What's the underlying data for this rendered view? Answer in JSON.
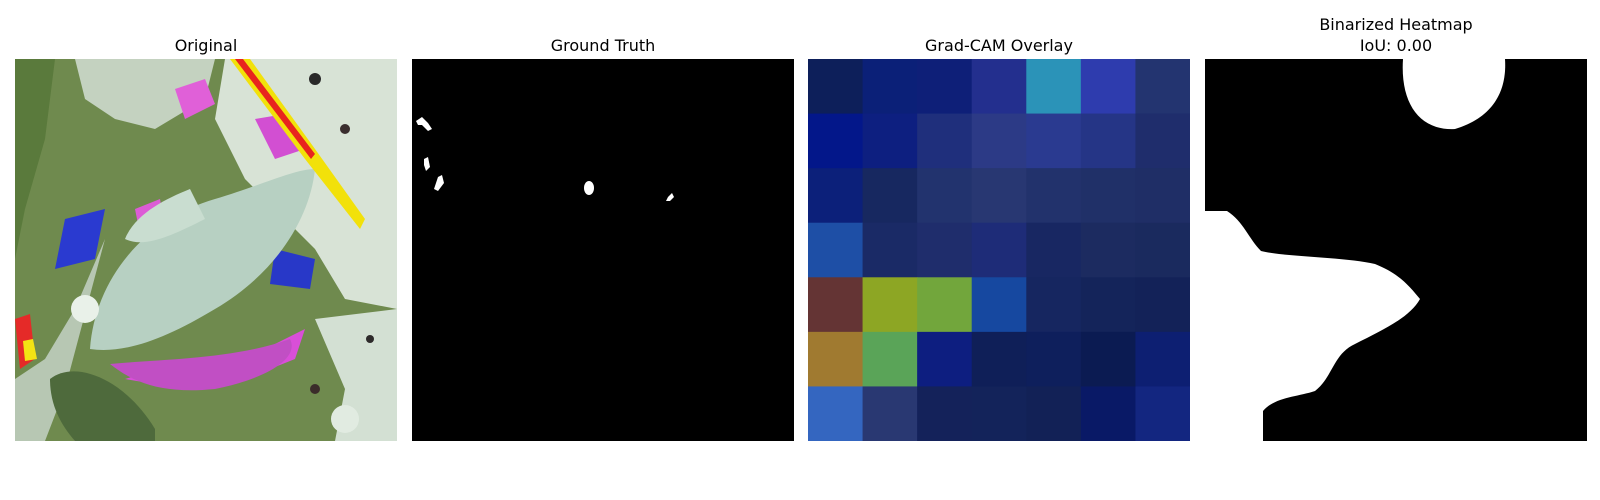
{
  "panels": {
    "original": {
      "title": "Original"
    },
    "ground_truth": {
      "title": "Ground Truth"
    },
    "gradcam": {
      "title": "Grad-CAM Overlay",
      "grid": [
        [
          "#0d1f5a",
          "#0b2078",
          "#0e1f78",
          "#232f8e",
          "#2b93b8",
          "#2e3cae",
          "#233470"
        ],
        [
          "#03178a",
          "#0d1f80",
          "#1f2f7c",
          "#2c3a86",
          "#2a3a90",
          "#253586",
          "#1f2d6c"
        ],
        [
          "#0c207a",
          "#172860",
          "#22336e",
          "#283772",
          "#22326c",
          "#203068",
          "#1f2e66"
        ],
        [
          "#1e4fa6",
          "#1a2a66",
          "#1f2d6c",
          "#1e2c78",
          "#182762",
          "#1c2b60",
          "#1a2a5e"
        ],
        [
          "#643434",
          "#8da624",
          "#72a63c",
          "#1648a0",
          "#162660",
          "#14245a",
          "#132258"
        ],
        [
          "#a07a30",
          "#5aa458",
          "#0d1e80",
          "#0f1f58",
          "#0e1f5c",
          "#0b1b52",
          "#0d1f72"
        ],
        [
          "#3466c0",
          "#293872",
          "#14225a",
          "#13235a",
          "#122156",
          "#091966",
          "#132680"
        ]
      ]
    },
    "binarized": {
      "title": "Binarized Heatmap",
      "subtitle": "IoU: 0.00"
    }
  }
}
